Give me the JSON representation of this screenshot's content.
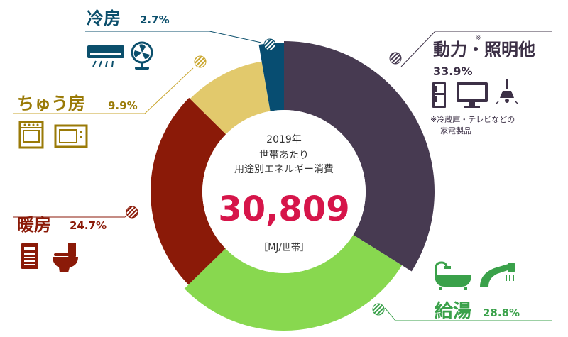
{
  "chart_data": {
    "type": "pie",
    "categories": [
      "動力・照明他",
      "給湯",
      "暖房",
      "ちゅう房",
      "冷房"
    ],
    "values": [
      33.9,
      28.8,
      24.7,
      9.9,
      2.7
    ],
    "value_labels": [
      "33.9%",
      "28.8%",
      "24.7%",
      "9.9%",
      "2.7%"
    ],
    "colors": [
      "#473a51",
      "#88d84f",
      "#8b1a08",
      "#e2c96c",
      "#074d71"
    ],
    "superscript_mark": "※",
    "note_lines": [
      "※冷蔵庫・テレビなどの",
      "家電製品"
    ],
    "center": {
      "year": "2019年",
      "line1": "世帯あたり",
      "line2": "用途別エネルギー消費",
      "value": "30,809",
      "unit": "［MJ/世帯］"
    }
  },
  "colors": {
    "value_red": "#d6154a",
    "label_blue": "#0b4f6c",
    "label_dark": "#3c3046",
    "label_gold": "#9a7a07",
    "label_red": "#8b1a08",
    "label_green": "#3aa14a"
  }
}
